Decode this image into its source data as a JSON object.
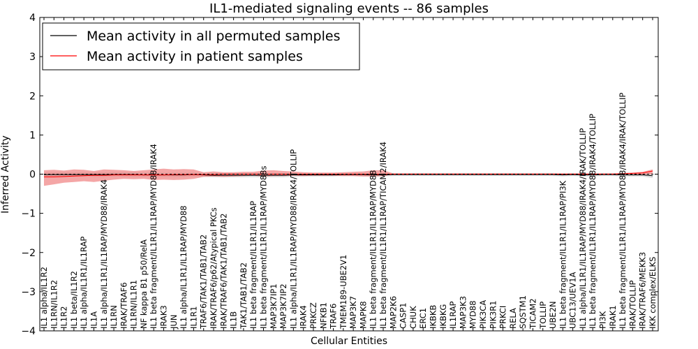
{
  "chart_data": {
    "type": "line",
    "title": "IL1-mediated signaling events -- 86 samples",
    "xlabel": "Cellular Entities",
    "ylabel": "Inferred Activity",
    "ylim": [
      -4,
      4
    ],
    "yticks": [
      -4,
      -3,
      -2,
      -1,
      0,
      1,
      2,
      3,
      4
    ],
    "categories": [
      "IL1 alpha/IL1R2",
      "IL1RN/IL1R2",
      "IL1R2",
      "IL1 beta/IL1R2",
      "IL1 alpha/IL1R1/IL1RAP",
      "IL1A",
      "IL1 alpha/IL1R1/IL1RAP/MYD88/IRAK4",
      "IL1RN",
      "IRAK/TRAF6",
      "IL1RN/IL1R1",
      "NF kappa B1 p50/RelA",
      "IL1 beta fragment/IL1R1/IL1RAP/MYD88/IRAK4",
      "IRAK3",
      "JUN",
      "IL1 alpha/IL1R1/IL1RAP/MYD88",
      "IL1R1",
      "TRAF6/TAK1/TAB1/TAB2",
      "IRAK/TRAF6/p62/Atypical PKCs",
      "IRAK/TRAF6/TAK1/TAB1/TAB2",
      "IL1B",
      "TAK1/TAB1/TAB2",
      "IL1 beta fragment/IL1R1/IL1RAP",
      "IL1 beta fragment/IL1R1/IL1RAP/MYD88s",
      "MAP3K7IP1",
      "MAP3K7IP2",
      "IL1 alpha/IL1R1/IL1RAP/MYD88/IRAK4/TOLLIP",
      "IRAK4",
      "PRKCZ",
      "NFKB1",
      "TRAF6",
      "TMEM189-UBE2V1",
      "MAP3K7",
      "MAPK8",
      "IL1 beta fragment/IL1R1/IL1RAP/MYD88",
      "IL1 beta fragment/IL1R1/IL1RAP/TICAM2/IRAK4",
      "MAP2K6",
      "CASP1",
      "CHUK",
      "ERC1",
      "IKBKB",
      "IKBKG",
      "IL1RAP",
      "MAP3K3",
      "MYD88",
      "PIK3CA",
      "PIK3R1",
      "PRKCI",
      "RELA",
      "SQSTM1",
      "TICAM2",
      "TOLLIP",
      "UBE2N",
      "IL1 beta fragment/IL1R1/IL1RAP/PI3K",
      "UBC13/UEV1A",
      "IL1 alpha/IL1R1/IL1RAP/MYD88/IRAK4/IRAK/TOLLIP",
      "IL1 beta fragment/IL1R1/IL1RAP/MYD88/IRAK4/TOLLIP",
      "PI3K",
      "IRAK1",
      "IL1 beta fragment/IL1R1/IL1RAP/MYD88/IRAK4/IRAK/TOLLIP",
      "IRAK/TOLLIP",
      "IRAK/TRAF6/MEKK3",
      "IKK complex/ELKS"
    ],
    "series": [
      {
        "name": "Mean activity in all permuted samples",
        "color": "#000000",
        "band_color": "#c8c8c8",
        "values": [
          -0.01,
          -0.01,
          -0.01,
          -0.01,
          -0.01,
          -0.01,
          -0.01,
          -0.01,
          -0.01,
          -0.01,
          -0.02,
          -0.02,
          -0.02,
          -0.02,
          -0.02,
          -0.01,
          -0.02,
          -0.03,
          -0.03,
          -0.03,
          -0.03,
          -0.03,
          -0.03,
          -0.03,
          -0.03,
          -0.02,
          -0.02,
          -0.02,
          -0.02,
          -0.02,
          -0.01,
          -0.01,
          -0.01,
          -0.02,
          -0.02,
          -0.01,
          -0.01,
          -0.01,
          -0.01,
          -0.01,
          -0.01,
          -0.01,
          -0.01,
          -0.01,
          -0.01,
          -0.01,
          -0.01,
          -0.01,
          -0.01,
          -0.01,
          -0.01,
          -0.01,
          -0.02,
          -0.01,
          -0.02,
          -0.02,
          -0.01,
          -0.01,
          -0.02,
          -0.02,
          -0.02,
          -0.04
        ],
        "lower": [
          -0.09,
          -0.08,
          -0.08,
          -0.07,
          -0.06,
          -0.07,
          -0.07,
          -0.06,
          -0.07,
          -0.07,
          -0.07,
          -0.07,
          -0.07,
          -0.07,
          -0.07,
          -0.06,
          -0.07,
          -0.08,
          -0.08,
          -0.08,
          -0.08,
          -0.08,
          -0.08,
          -0.08,
          -0.08,
          -0.07,
          -0.06,
          -0.06,
          -0.06,
          -0.06,
          -0.05,
          -0.05,
          -0.05,
          -0.06,
          -0.06,
          -0.05,
          -0.05,
          -0.05,
          -0.05,
          -0.05,
          -0.05,
          -0.05,
          -0.05,
          -0.05,
          -0.05,
          -0.05,
          -0.05,
          -0.05,
          -0.05,
          -0.05,
          -0.05,
          -0.05,
          -0.06,
          -0.05,
          -0.06,
          -0.06,
          -0.05,
          -0.05,
          -0.06,
          -0.06,
          -0.06,
          -0.1
        ],
        "upper": [
          0.05,
          0.05,
          0.05,
          0.05,
          0.05,
          0.05,
          0.05,
          0.05,
          0.05,
          0.05,
          0.04,
          0.04,
          0.04,
          0.04,
          0.04,
          0.04,
          0.03,
          0.02,
          0.02,
          0.02,
          0.02,
          0.02,
          0.02,
          0.02,
          0.02,
          0.03,
          0.03,
          0.03,
          0.03,
          0.03,
          0.03,
          0.03,
          0.03,
          0.02,
          0.02,
          0.03,
          0.03,
          0.03,
          0.03,
          0.03,
          0.03,
          0.03,
          0.03,
          0.03,
          0.03,
          0.03,
          0.03,
          0.03,
          0.03,
          0.03,
          0.03,
          0.03,
          0.02,
          0.03,
          0.02,
          0.02,
          0.03,
          0.03,
          0.02,
          0.02,
          0.02,
          0.02
        ]
      },
      {
        "name": "Mean activity in patient samples",
        "color": "#ff0000",
        "band_color": "#f08080",
        "values": [
          -0.07,
          -0.07,
          -0.06,
          -0.05,
          -0.04,
          -0.03,
          -0.03,
          -0.02,
          -0.02,
          -0.02,
          -0.02,
          -0.02,
          -0.02,
          -0.01,
          -0.01,
          -0.01,
          -0.01,
          -0.01,
          0.0,
          0.0,
          0.0,
          0.0,
          0.0,
          0.0,
          0.0,
          0.0,
          0.0,
          0.0,
          0.0,
          0.0,
          0.0,
          0.0,
          0.0,
          0.0,
          0.0,
          0.0,
          0.0,
          0.0,
          0.0,
          0.0,
          0.0,
          0.0,
          0.0,
          0.0,
          0.0,
          0.0,
          0.0,
          0.0,
          0.0,
          0.0,
          0.0,
          0.0,
          0.0,
          0.0,
          0.0,
          0.0,
          0.0,
          0.0,
          0.01,
          0.02,
          0.03,
          0.08
        ],
        "lower": [
          -0.3,
          -0.26,
          -0.22,
          -0.2,
          -0.18,
          -0.2,
          -0.17,
          -0.14,
          -0.12,
          -0.13,
          -0.12,
          -0.15,
          -0.14,
          -0.15,
          -0.14,
          -0.12,
          -0.07,
          -0.06,
          -0.07,
          -0.06,
          -0.05,
          -0.04,
          -0.06,
          -0.05,
          -0.05,
          -0.04,
          -0.05,
          -0.04,
          -0.04,
          -0.04,
          -0.05,
          -0.05,
          -0.06,
          -0.06,
          -0.05,
          -0.01,
          -0.01,
          -0.01,
          -0.01,
          -0.01,
          -0.01,
          -0.01,
          -0.01,
          -0.01,
          -0.01,
          -0.01,
          -0.01,
          -0.01,
          -0.01,
          -0.01,
          -0.01,
          -0.01,
          -0.01,
          -0.01,
          -0.01,
          -0.01,
          -0.01,
          -0.01,
          -0.01,
          -0.0,
          -0.01,
          0.0
        ],
        "upper": [
          0.1,
          0.11,
          0.09,
          0.12,
          0.11,
          0.08,
          0.12,
          0.11,
          0.1,
          0.08,
          0.1,
          0.12,
          0.14,
          0.12,
          0.13,
          0.12,
          0.05,
          0.07,
          0.05,
          0.05,
          0.06,
          0.06,
          0.09,
          0.1,
          0.08,
          0.07,
          0.05,
          0.04,
          0.04,
          0.04,
          0.05,
          0.06,
          0.07,
          0.1,
          0.1,
          0.02,
          0.02,
          0.02,
          0.02,
          0.02,
          0.02,
          0.02,
          0.02,
          0.02,
          0.02,
          0.02,
          0.02,
          0.02,
          0.02,
          0.02,
          0.02,
          0.02,
          0.02,
          0.02,
          0.02,
          0.02,
          0.02,
          0.02,
          0.03,
          0.04,
          0.06,
          0.12
        ]
      }
    ],
    "legend_placement": "top-left",
    "grid": false
  }
}
